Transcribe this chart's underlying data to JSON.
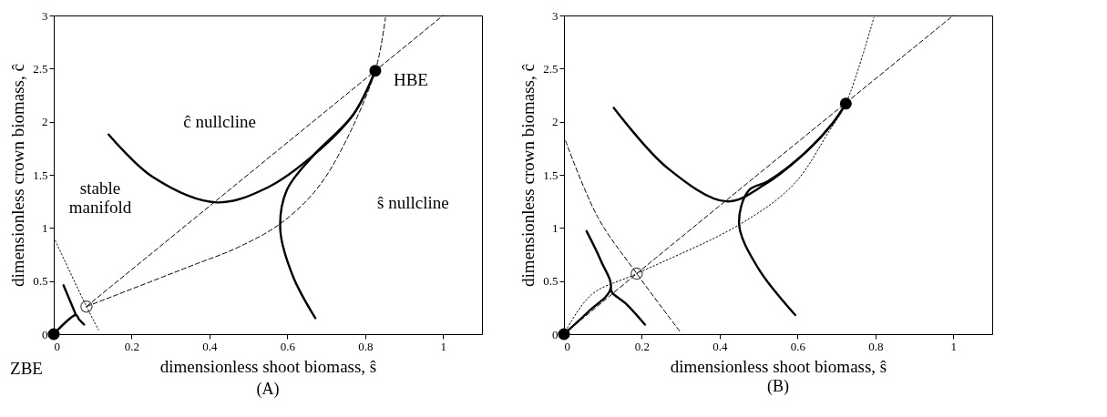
{
  "chart_data": [
    {
      "type": "line",
      "title": "(A)",
      "xlabel": "dimensionless shoot biomass, ŝ",
      "ylabel": "dimensionless crown biomass, ĉ",
      "xlim": [
        0,
        1.1
      ],
      "ylim": [
        0,
        3
      ],
      "xticks": [
        0,
        0.2,
        0.4,
        0.6,
        0.8,
        1
      ],
      "yticks": [
        0,
        0.5,
        1,
        1.5,
        2,
        2.5,
        3
      ],
      "grid": false,
      "series": [
        {
          "color": "#000000",
          "line_style": "dashed",
          "x": [
            0.084,
            1.0
          ],
          "values": [
            0.26,
            3.0
          ]
        },
        {
          "color": "#000000",
          "line_style": "dashed",
          "x": [
            0.084,
            0.344,
            0.475,
            0.582,
            0.672,
            0.738,
            0.826,
            0.852
          ],
          "values": [
            0.26,
            0.63,
            0.82,
            1.04,
            1.35,
            1.73,
            2.48,
            2.98
          ]
        },
        {
          "color": "#000000",
          "line_style": "dotted",
          "x": [
            0.004,
            0.084,
            0.115
          ],
          "values": [
            0.88,
            0.26,
            0.04
          ]
        },
        {
          "color": "#000000",
          "line_style": "solid",
          "x": [
            0.141,
            0.254,
            0.418,
            0.549,
            0.672,
            0.77,
            0.826
          ],
          "values": [
            1.88,
            1.48,
            1.24,
            1.38,
            1.7,
            2.07,
            2.48
          ]
        },
        {
          "color": "#000000",
          "line_style": "solid",
          "x": [
            0.672,
            0.615,
            0.582,
            0.598,
            0.664,
            0.77,
            0.826
          ],
          "values": [
            0.15,
            0.54,
            0.98,
            1.35,
            1.67,
            2.07,
            2.48
          ]
        },
        {
          "color": "#000000",
          "line_style": "solid",
          "x": [
            0.025,
            0.04,
            0.057
          ],
          "values": [
            0.46,
            0.33,
            0.18
          ]
        },
        {
          "color": "#000000",
          "line_style": "solid",
          "x": [
            0.078,
            0.065,
            0.057,
            0
          ],
          "values": [
            0.09,
            0.14,
            0.18,
            0
          ]
        },
        {
          "type": "scatter",
          "marker": "circle",
          "color": "#000000",
          "x": [
            0,
            0.826
          ],
          "values": [
            0,
            2.48
          ]
        },
        {
          "type": "scatter",
          "color": "#000000",
          "x": [
            0.084
          ],
          "values": [
            0.26
          ]
        }
      ],
      "annotations": [
        {
          "text": "HBE",
          "x": 0.826,
          "y": 2.48
        },
        "ĉ nullcline",
        "ŝ nullcline",
        "stable manifold",
        {
          "text": "ZBE",
          "x": 0,
          "y": 0
        }
      ]
    },
    {
      "type": "line",
      "title": "(B)",
      "xlabel": "dimensionless shoot biomass, ŝ",
      "ylabel": "dimensionless crown biomass, ĉ",
      "xlim": [
        0,
        1.1
      ],
      "ylim": [
        0,
        3
      ],
      "xticks": [
        0,
        0.2,
        0.4,
        0.6,
        0.8,
        1
      ],
      "yticks": [
        0,
        0.5,
        1,
        1.5,
        2,
        2.5,
        3
      ],
      "grid": false,
      "series": [
        {
          "color": "#000000",
          "line_style": "dashed",
          "x": [
            0,
            0.187,
            1.0
          ],
          "values": [
            0,
            0.57,
            3.0
          ]
        },
        {
          "color": "#000000",
          "line_style": "dotted",
          "x": [
            0,
            0.07,
            0.187,
            0.45,
            0.59,
            0.681,
            0.724,
            0.796
          ],
          "values": [
            0,
            0.37,
            0.57,
            1.03,
            1.41,
            1.91,
            2.17,
            2.98
          ]
        },
        {
          "color": "#000000",
          "line_style": "dashed",
          "x": [
            0.004,
            0.087,
            0.187,
            0.301
          ],
          "values": [
            1.82,
            1.1,
            0.57,
            0.01
          ]
        },
        {
          "color": "#000000",
          "line_style": "solid",
          "x": [
            0.128,
            0.264,
            0.417,
            0.516,
            0.623,
            0.689,
            0.724
          ],
          "values": [
            2.13,
            1.57,
            1.25,
            1.41,
            1.72,
            1.98,
            2.17
          ]
        },
        {
          "color": "#000000",
          "line_style": "solid",
          "x": [
            0.594,
            0.499,
            0.45,
            0.474,
            0.524,
            0.623,
            0.689,
            0.724
          ],
          "values": [
            0.18,
            0.62,
            1.03,
            1.35,
            1.44,
            1.72,
            1.98,
            2.17
          ]
        },
        {
          "color": "#000000",
          "line_style": "solid",
          "x": [
            0.058,
            0.095,
            0.12,
            0.062,
            0
          ],
          "values": [
            0.97,
            0.69,
            0.43,
            0.21,
            0
          ]
        },
        {
          "color": "#000000",
          "line_style": "solid",
          "x": [
            0.208,
            0.161,
            0.124,
            0.12
          ],
          "values": [
            0.09,
            0.28,
            0.39,
            0.43
          ]
        },
        {
          "type": "scatter",
          "marker": "circle",
          "color": "#000000",
          "x": [
            0,
            0.724
          ],
          "values": [
            0,
            2.17
          ]
        },
        {
          "type": "scatter",
          "color": "#000000",
          "x": [
            0.187
          ],
          "values": [
            0.57
          ]
        }
      ]
    }
  ]
}
